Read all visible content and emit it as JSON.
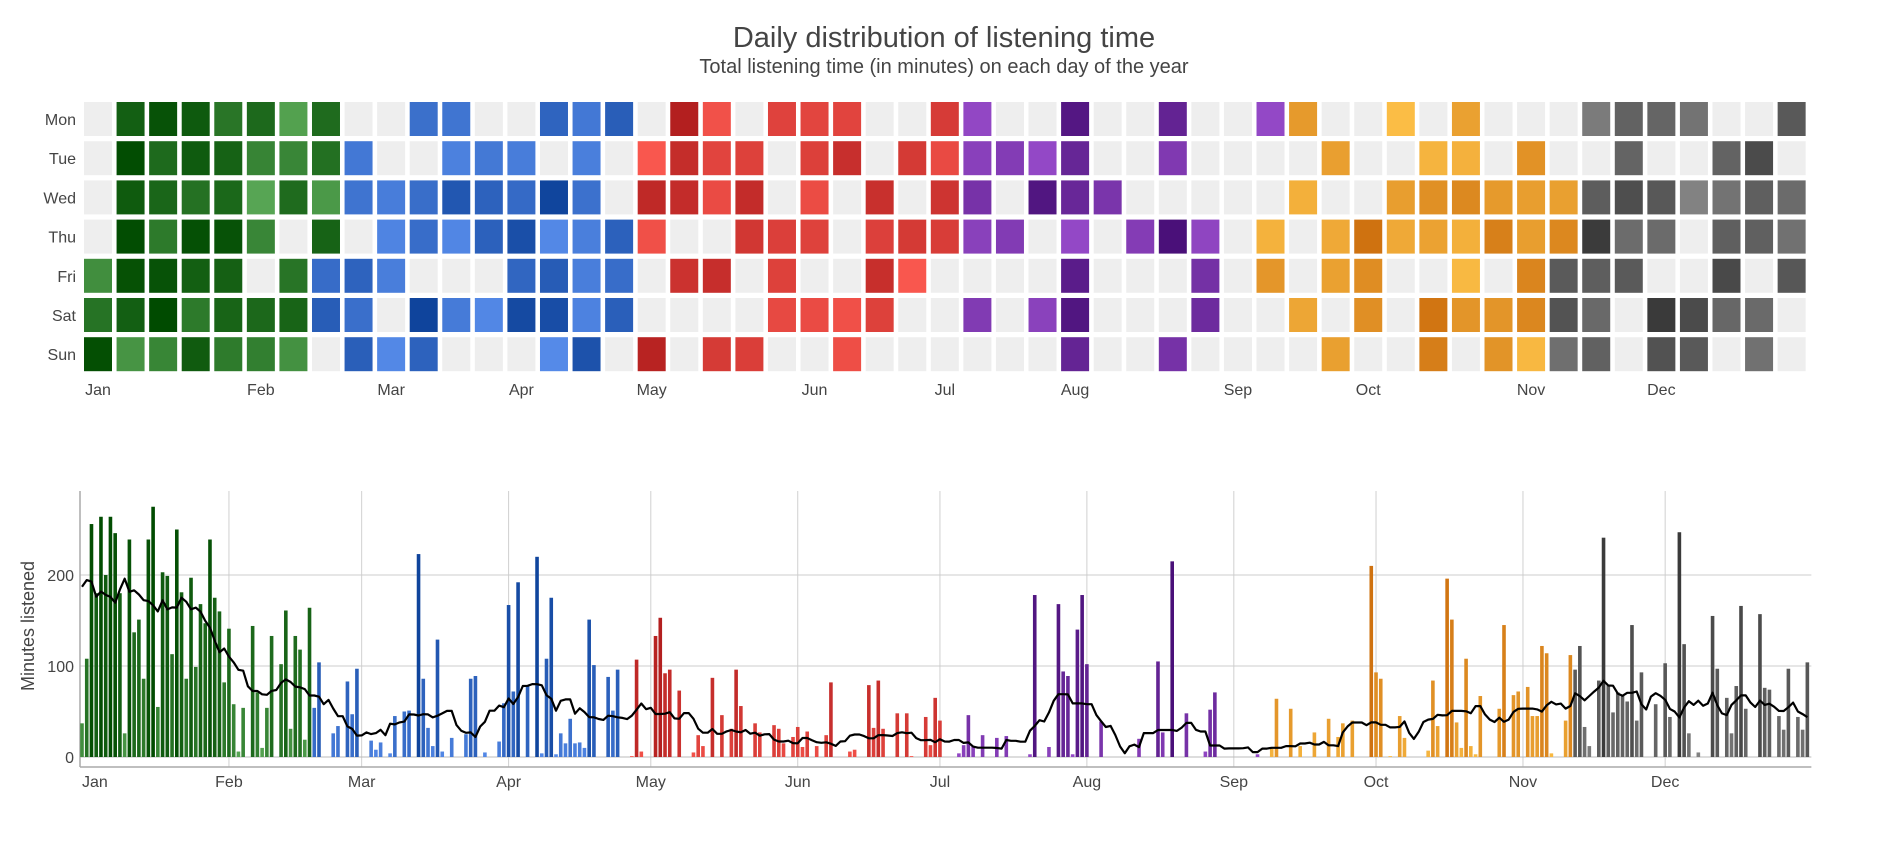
{
  "title": "Daily distribution of listening time",
  "subtitle": "Total listening time (in minutes) on each day of the year",
  "chart_data": [
    {
      "type": "heatmap",
      "rows": [
        "Mon",
        "Tue",
        "Wed",
        "Thu",
        "Fri",
        "Sat",
        "Sun"
      ],
      "x_tick_labels": [
        "Jan",
        "Feb",
        "Mar",
        "Apr",
        "May",
        "Jun",
        "Jul",
        "Aug",
        "Sep",
        "Oct",
        "Nov",
        "Dec"
      ],
      "empty_color": "#eeeeee",
      "values_source": "daily_minutes"
    },
    {
      "type": "bar",
      "ylabel": "Minutes listened",
      "y_ticks": [
        "0",
        "100",
        "200"
      ],
      "ylim": [
        0,
        292
      ],
      "x_tick_labels": [
        "Jan",
        "Feb",
        "Mar",
        "Apr",
        "May",
        "Jun",
        "Jul",
        "Aug",
        "Sep",
        "Oct",
        "Nov",
        "Dec"
      ],
      "grid": true,
      "line": {
        "kind": "rolling mean",
        "color": "#000000"
      }
    }
  ],
  "color_groups": [
    {
      "first_day": 1,
      "last_day": 49,
      "light": "#66b562",
      "dark": "#004b00"
    },
    {
      "first_day": 50,
      "last_day": 116,
      "light": "#5e93f2",
      "dark": "#0f449c"
    },
    {
      "first_day": 117,
      "last_day": 182,
      "light": "#ff5c52",
      "dark": "#b31f1f"
    },
    {
      "first_day": 183,
      "last_day": 249,
      "light": "#9d50d0",
      "dark": "#4a1079"
    },
    {
      "first_day": 250,
      "last_day": 315,
      "light": "#fec349",
      "dark": "#cf7210"
    },
    {
      "first_day": 316,
      "last_day": 365,
      "light": "#8e8e8e",
      "dark": "#3a3a3a"
    }
  ],
  "daily_minutes": [
    37,
    108,
    256,
    180,
    264,
    200,
    264,
    246,
    180,
    26,
    239,
    137,
    151,
    86,
    239,
    275,
    55,
    203,
    199,
    113,
    250,
    181,
    86,
    197,
    99,
    168,
    147,
    239,
    175,
    160,
    82,
    141,
    58,
    6,
    54,
    0,
    144,
    71,
    10,
    54,
    133,
    0,
    102,
    161,
    31,
    133,
    118,
    19,
    164,
    54,
    104,
    0,
    0,
    26,
    34,
    0,
    83,
    47,
    97,
    0,
    0,
    18,
    8,
    16,
    0,
    4,
    45,
    0,
    50,
    51,
    0,
    223,
    86,
    32,
    12,
    129,
    6,
    0,
    21,
    0,
    0,
    25,
    86,
    89,
    0,
    5,
    0,
    0,
    17,
    59,
    167,
    72,
    192,
    0,
    79,
    0,
    220,
    4,
    108,
    175,
    3,
    26,
    15,
    42,
    15,
    16,
    10,
    151,
    101,
    0,
    0,
    88,
    51,
    96,
    0,
    0,
    1,
    107,
    6,
    0,
    0,
    133,
    153,
    92,
    96,
    0,
    73,
    0,
    0,
    5,
    24,
    12,
    0,
    87,
    0,
    46,
    0,
    31,
    96,
    56,
    0,
    0,
    37,
    27,
    0,
    0,
    35,
    31,
    15,
    0,
    22,
    33,
    11,
    28,
    0,
    12,
    0,
    24,
    82,
    0,
    0,
    0,
    6,
    8,
    0,
    0,
    79,
    32,
    84,
    31,
    0,
    0,
    48,
    0,
    48,
    1,
    0,
    0,
    44,
    13,
    65,
    40,
    0,
    0,
    0,
    4,
    13,
    46,
    12,
    0,
    24,
    0,
    0,
    21,
    0,
    23,
    0,
    0,
    0,
    0,
    3,
    178,
    0,
    0,
    11,
    0,
    168,
    94,
    89,
    3,
    140,
    178,
    102,
    0,
    0,
    39,
    0,
    0,
    0,
    0,
    0,
    0,
    0,
    20,
    0,
    0,
    0,
    105,
    27,
    0,
    215,
    0,
    0,
    48,
    0,
    0,
    0,
    6,
    52,
    71,
    0,
    0,
    0,
    0,
    0,
    0,
    0,
    0,
    3,
    0,
    0,
    9,
    64,
    0,
    0,
    53,
    0,
    12,
    0,
    0,
    27,
    0,
    0,
    42,
    0,
    22,
    37,
    0,
    40,
    0,
    0,
    0,
    210,
    93,
    86,
    0,
    1,
    0,
    45,
    21,
    0,
    0,
    0,
    0,
    7,
    84,
    34,
    0,
    196,
    151,
    38,
    10,
    108,
    12,
    3,
    67,
    0,
    0,
    0,
    53,
    145,
    0,
    68,
    72,
    0,
    77,
    45,
    45,
    122,
    114,
    4,
    0,
    0,
    40,
    112,
    96,
    122,
    33,
    12,
    0,
    84,
    241,
    79,
    49,
    71,
    67,
    61,
    145,
    40,
    93,
    0,
    0,
    58,
    0,
    103,
    44,
    0,
    247,
    124,
    26,
    0,
    5,
    0,
    0,
    155,
    97,
    0,
    65,
    26,
    78,
    166,
    53,
    0,
    0,
    157,
    76,
    74,
    0,
    45,
    30,
    97,
    0,
    44,
    30,
    104
  ]
}
